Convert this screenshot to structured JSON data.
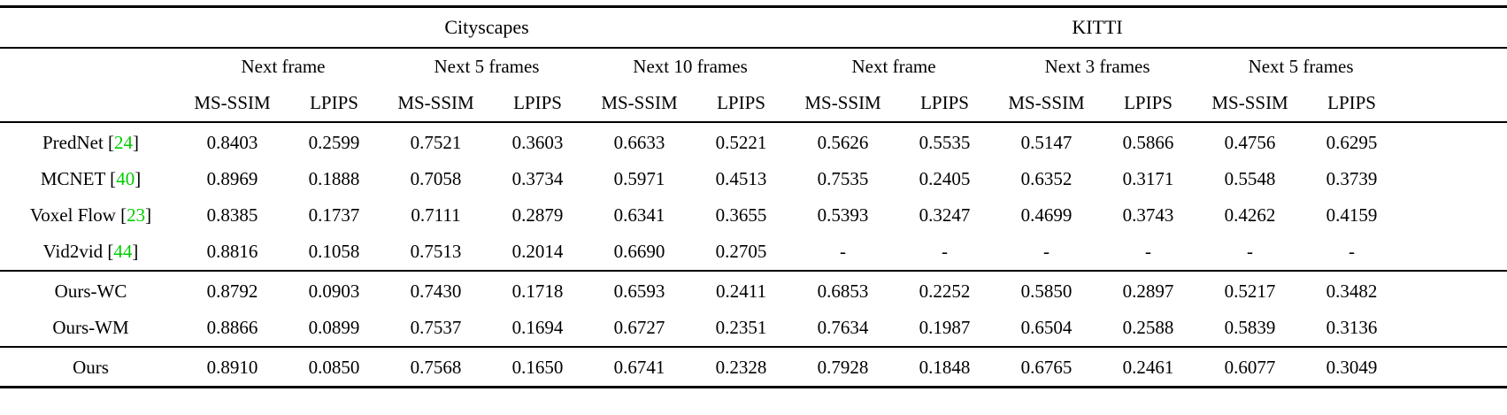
{
  "page": {
    "background": "#ffffff",
    "cite_color": "#00cc00",
    "text_color": "#000000"
  },
  "table": {
    "dataset_headers": [
      {
        "label": "Cityscapes"
      },
      {
        "label": "KITTI"
      }
    ],
    "frame_headers": [
      "Next frame",
      "Next 5 frames",
      "Next 10 frames",
      "Next frame",
      "Next 3 frames",
      "Next 5 frames"
    ],
    "metric_headers": [
      "MS-SSIM",
      "LPIPS",
      "MS-SSIM",
      "LPIPS",
      "MS-SSIM",
      "LPIPS",
      "MS-SSIM",
      "LPIPS",
      "MS-SSIM",
      "LPIPS",
      "MS-SSIM",
      "LPIPS"
    ],
    "groups": [
      {
        "rows": [
          {
            "method": "PredNet",
            "cite": "24",
            "values": [
              "0.8403",
              "0.2599",
              "0.7521",
              "0.3603",
              "0.6633",
              "0.5221",
              "0.5626",
              "0.5535",
              "0.5147",
              "0.5866",
              "0.4756",
              "0.6295"
            ],
            "bold": []
          },
          {
            "method": "MCNET",
            "cite": "40",
            "values": [
              "0.8969",
              "0.1888",
              "0.7058",
              "0.3734",
              "0.5971",
              "0.4513",
              "0.7535",
              "0.2405",
              "0.6352",
              "0.3171",
              "0.5548",
              "0.3739"
            ],
            "bold": [
              0
            ]
          },
          {
            "method": "Voxel Flow",
            "cite": "23",
            "values": [
              "0.8385",
              "0.1737",
              "0.7111",
              "0.2879",
              "0.6341",
              "0.3655",
              "0.5393",
              "0.3247",
              "0.4699",
              "0.3743",
              "0.4262",
              "0.4159"
            ],
            "bold": []
          },
          {
            "method": "Vid2vid",
            "cite": "44",
            "values": [
              "0.8816",
              "0.1058",
              "0.7513",
              "0.2014",
              "0.6690",
              "0.2705",
              "-",
              "-",
              "-",
              "-",
              "-",
              "-"
            ],
            "bold": []
          }
        ]
      },
      {
        "rows": [
          {
            "method": "Ours-WC",
            "cite": null,
            "values": [
              "0.8792",
              "0.0903",
              "0.7430",
              "0.1718",
              "0.6593",
              "0.2411",
              "0.6853",
              "0.2252",
              "0.5850",
              "0.2897",
              "0.5217",
              "0.3482"
            ],
            "bold": []
          },
          {
            "method": "Ours-WM",
            "cite": null,
            "values": [
              "0.8866",
              "0.0899",
              "0.7537",
              "0.1694",
              "0.6727",
              "0.2351",
              "0.7634",
              "0.1987",
              "0.6504",
              "0.2588",
              "0.5839",
              "0.3136"
            ],
            "bold": []
          }
        ]
      },
      {
        "rows": [
          {
            "method": "Ours",
            "cite": null,
            "values": [
              "0.8910",
              "0.0850",
              "0.7568",
              "0.1650",
              "0.6741",
              "0.2328",
              "0.7928",
              "0.1848",
              "0.6765",
              "0.2461",
              "0.6077",
              "0.3049"
            ],
            "bold": [
              1,
              2,
              3,
              4,
              5,
              6,
              7,
              8,
              9,
              10,
              11
            ]
          }
        ]
      }
    ]
  }
}
